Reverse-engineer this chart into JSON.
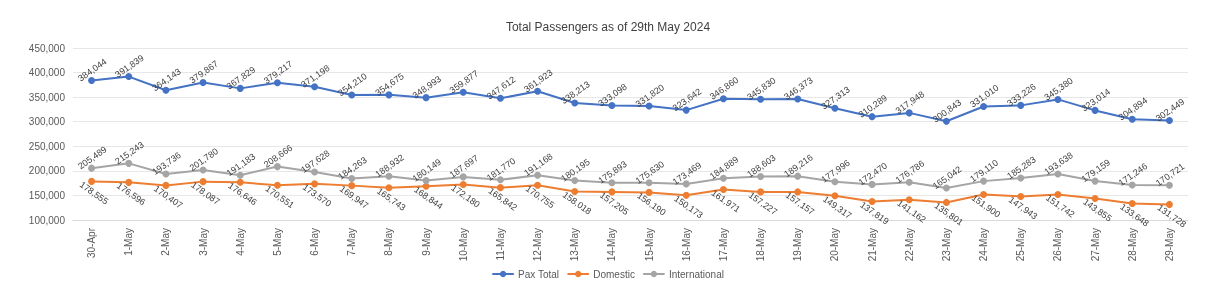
{
  "chart_data": {
    "type": "line",
    "title": "Total Passengers as of 29th May 2024",
    "categories": [
      "30-Apr",
      "1-May",
      "2-May",
      "3-May",
      "4-May",
      "5-May",
      "6-May",
      "7-May",
      "8-May",
      "9-May",
      "10-May",
      "11-May",
      "12-May",
      "13-May",
      "14-May",
      "15-May",
      "16-May",
      "17-May",
      "18-May",
      "19-May",
      "20-May",
      "21-May",
      "22-May",
      "23-May",
      "24-May",
      "25-May",
      "26-May",
      "27-May",
      "28-May",
      "29-May"
    ],
    "series": [
      {
        "name": "Pax Total",
        "color": "#4472c4",
        "values": [
          384044,
          391839,
          364143,
          379867,
          367829,
          379217,
          371198,
          354210,
          354675,
          348993,
          359877,
          347612,
          361923,
          338213,
          333098,
          331820,
          323642,
          346860,
          345830,
          346373,
          327313,
          310289,
          317948,
          300843,
          331010,
          333226,
          345380,
          323014,
          304894,
          302449
        ],
        "value_labels": [
          "384,044",
          "391,839",
          "364,143",
          "379,867",
          "367,829",
          "379,217",
          "371,198",
          "354,210",
          "354,675",
          "348,993",
          "359,877",
          "347,612",
          "361,923",
          "338,213",
          "333,098",
          "331,820",
          "323,642",
          "346,860",
          "345,830",
          "346,373",
          "327,313",
          "310,289",
          "317,948",
          "300,843",
          "331,010",
          "333,226",
          "345,380",
          "323,014",
          "304,894",
          "302,449"
        ]
      },
      {
        "name": "Domestic",
        "color": "#ed7d31",
        "values": [
          178555,
          176596,
          170407,
          178087,
          176646,
          170551,
          173570,
          169947,
          165743,
          168844,
          172180,
          165842,
          170755,
          158018,
          157205,
          156190,
          150173,
          161971,
          157227,
          157157,
          149317,
          137819,
          141162,
          135801,
          151900,
          147943,
          151742,
          143855,
          133648,
          131728
        ],
        "value_labels": [
          "178,555",
          "176,596",
          "170,407",
          "178,087",
          "176,646",
          "170,551",
          "173,570",
          "169,947",
          "165,743",
          "168,844",
          "172,180",
          "165,842",
          "170,755",
          "158,018",
          "157,205",
          "156,190",
          "150,173",
          "161,971",
          "157,227",
          "157,157",
          "149,317",
          "137,819",
          "141,162",
          "135,801",
          "151,900",
          "147,943",
          "151,742",
          "143,855",
          "133,648",
          "131,728"
        ]
      },
      {
        "name": "International",
        "color": "#a5a5a5",
        "values": [
          205489,
          215243,
          193736,
          201780,
          191183,
          208666,
          197628,
          184263,
          188932,
          180149,
          187697,
          181770,
          191168,
          180195,
          175893,
          175630,
          173469,
          184889,
          188603,
          189216,
          177996,
          172470,
          176786,
          165042,
          179110,
          185283,
          193638,
          179159,
          171246,
          170721
        ],
        "value_labels": [
          "205,489",
          "215,243",
          "193,736",
          "201,780",
          "191,183",
          "208,666",
          "197,628",
          "184,263",
          "188,932",
          "180,149",
          "187,697",
          "181,770",
          "191,168",
          "180,195",
          "175,893",
          "175,630",
          "173,469",
          "184,889",
          "188,603",
          "189,216",
          "177,996",
          "172,470",
          "176,786",
          "165,042",
          "179,110",
          "185,283",
          "193,638",
          "179,159",
          "171,246",
          "170,721"
        ]
      }
    ],
    "ylim": [
      100000,
      450000
    ],
    "yticks": [
      {
        "value": 100000,
        "label": "100,000"
      },
      {
        "value": 150000,
        "label": "150,000"
      },
      {
        "value": 200000,
        "label": "200,000"
      },
      {
        "value": 250000,
        "label": "250,000"
      },
      {
        "value": 300000,
        "label": "300,000"
      },
      {
        "value": 350000,
        "label": "350,000"
      },
      {
        "value": 400000,
        "label": "400,000"
      },
      {
        "value": 450000,
        "label": "450,000"
      }
    ],
    "grid": "y",
    "legend": "bottom",
    "marker": "circle",
    "line_style": "solid"
  }
}
